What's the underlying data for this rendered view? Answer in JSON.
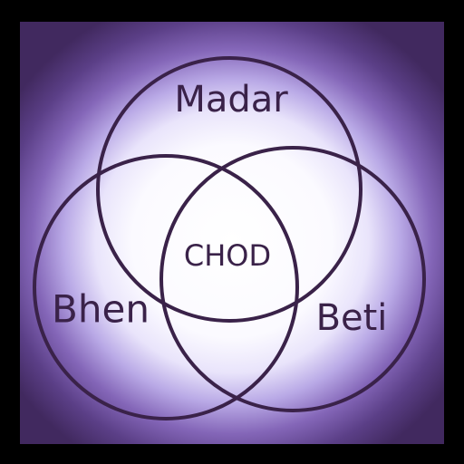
{
  "diagram": {
    "type": "venn",
    "sets": [
      {
        "label": "Madar"
      },
      {
        "label": "Bhen"
      },
      {
        "label": "Beti"
      }
    ],
    "intersection_label": "CHOD"
  },
  "colors": {
    "outline": "#3a2249",
    "text": "#3a2249",
    "glow_center": "#ffffff",
    "glow_edge": "#41295f",
    "border": "#000000"
  }
}
